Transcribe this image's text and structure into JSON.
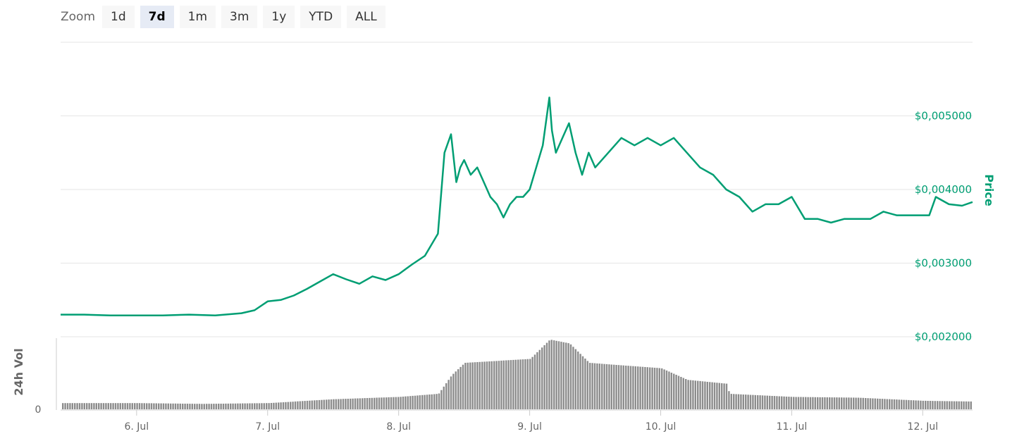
{
  "zoom": {
    "label": "Zoom",
    "buttons": [
      "1d",
      "7d",
      "1m",
      "3m",
      "1y",
      "YTD",
      "ALL"
    ],
    "selected": "7d"
  },
  "chart_data": {
    "type": "line",
    "x_unit": "days",
    "x_labels": [
      "6. Jul",
      "7. Jul",
      "8. Jul",
      "9. Jul",
      "10. Jul",
      "11. Jul",
      "12. Jul"
    ],
    "x_range": [
      "5. Jul 10:00",
      "12. Jul 10:00"
    ],
    "price_axis": {
      "title": "Price",
      "ticks": [
        "$0,002000",
        "$0,003000",
        "$0,004000",
        "$0,005000"
      ],
      "tick_values": [
        0.002,
        0.003,
        0.004,
        0.005
      ],
      "range": [
        0.002,
        0.006
      ],
      "color": "#009e73"
    },
    "volume_axis": {
      "title": "24h Vol",
      "ticks": [
        "0"
      ],
      "color": "#808080"
    },
    "price_series": {
      "name": "Price",
      "x": [
        5.42,
        5.6,
        5.8,
        6.0,
        6.2,
        6.4,
        6.6,
        6.8,
        6.9,
        7.0,
        7.1,
        7.2,
        7.3,
        7.4,
        7.5,
        7.6,
        7.7,
        7.8,
        7.9,
        8.0,
        8.1,
        8.2,
        8.3,
        8.35,
        8.4,
        8.44,
        8.47,
        8.5,
        8.55,
        8.6,
        8.65,
        8.7,
        8.75,
        8.8,
        8.85,
        8.9,
        8.95,
        9.0,
        9.05,
        9.1,
        9.15,
        9.17,
        9.2,
        9.25,
        9.3,
        9.35,
        9.4,
        9.45,
        9.5,
        9.6,
        9.7,
        9.8,
        9.9,
        10.0,
        10.1,
        10.2,
        10.3,
        10.4,
        10.5,
        10.6,
        10.7,
        10.8,
        10.9,
        11.0,
        11.1,
        11.2,
        11.3,
        11.4,
        11.5,
        11.6,
        11.7,
        11.8,
        11.9,
        12.0,
        12.05,
        12.1,
        12.2,
        12.3,
        12.38
      ],
      "values": [
        0.0023,
        0.0023,
        0.00229,
        0.00229,
        0.00229,
        0.0023,
        0.00229,
        0.00232,
        0.00236,
        0.00248,
        0.0025,
        0.00256,
        0.00265,
        0.00275,
        0.00285,
        0.00278,
        0.00272,
        0.00282,
        0.00277,
        0.00285,
        0.00298,
        0.0031,
        0.0034,
        0.0045,
        0.00475,
        0.0041,
        0.0043,
        0.0044,
        0.0042,
        0.0043,
        0.0041,
        0.0039,
        0.0038,
        0.00362,
        0.0038,
        0.0039,
        0.0039,
        0.004,
        0.0043,
        0.0046,
        0.00525,
        0.0048,
        0.0045,
        0.0047,
        0.0049,
        0.0045,
        0.0042,
        0.0045,
        0.0043,
        0.0045,
        0.0047,
        0.0046,
        0.0047,
        0.0046,
        0.0047,
        0.0045,
        0.0043,
        0.0042,
        0.004,
        0.0039,
        0.0037,
        0.0038,
        0.0038,
        0.0039,
        0.0036,
        0.0036,
        0.00355,
        0.0036,
        0.0036,
        0.0036,
        0.0037,
        0.00365,
        0.00365,
        0.00365,
        0.00365,
        0.0039,
        0.0038,
        0.00378,
        0.00383
      ]
    },
    "volume_series": {
      "name": "24h Vol",
      "x": [
        5.42,
        6.0,
        6.5,
        7.0,
        7.5,
        8.0,
        8.3,
        8.4,
        8.5,
        9.0,
        9.15,
        9.3,
        9.45,
        9.6,
        10.0,
        10.2,
        10.5,
        10.52,
        11.0,
        11.5,
        12.0,
        12.38
      ],
      "values": [
        0.08,
        0.08,
        0.07,
        0.08,
        0.13,
        0.16,
        0.2,
        0.44,
        0.6,
        0.65,
        0.9,
        0.85,
        0.6,
        0.58,
        0.53,
        0.38,
        0.33,
        0.2,
        0.16,
        0.15,
        0.11,
        0.1
      ]
    },
    "grid": true
  }
}
